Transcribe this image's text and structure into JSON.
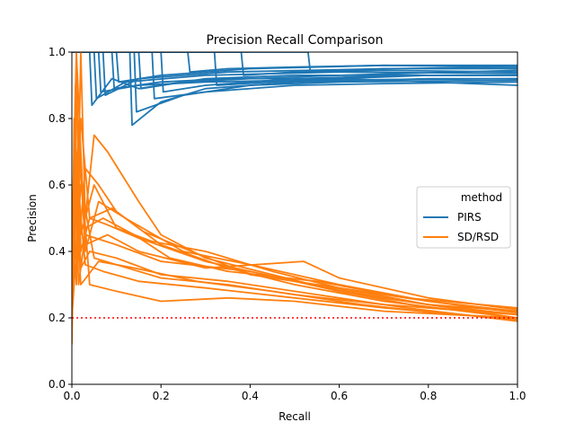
{
  "chart_data": {
    "type": "line",
    "title": "Precision Recall Comparison",
    "xlabel": "Recall",
    "ylabel": "Precision",
    "xlim": [
      0.0,
      1.0
    ],
    "ylim": [
      0.0,
      1.0
    ],
    "xticks": [
      0.0,
      0.2,
      0.4,
      0.6,
      0.8,
      1.0
    ],
    "yticks": [
      0.0,
      0.2,
      0.4,
      0.6,
      0.8,
      1.0
    ],
    "xtick_labels": [
      "0.0",
      "0.2",
      "0.4",
      "0.6",
      "0.8",
      "1.0"
    ],
    "ytick_labels": [
      "0.0",
      "0.2",
      "0.4",
      "0.6",
      "0.8",
      "1.0"
    ],
    "grid": false,
    "legend": {
      "title": "method",
      "position": "center-right",
      "entries": [
        {
          "label": "PIRS",
          "color": "#1f77b4"
        },
        {
          "label": "SD/RSD",
          "color": "#ff7f0e"
        }
      ]
    },
    "baseline": {
      "y": 0.2,
      "color": "#ff0000",
      "style": "dotted"
    },
    "series": [
      {
        "name": "PIRS",
        "color": "#1f77b4",
        "values": [
          [
            [
              0.0,
              1.0
            ],
            [
              0.04,
              1.0
            ],
            [
              0.045,
              0.84
            ],
            [
              0.09,
              0.92
            ],
            [
              0.15,
              0.89
            ],
            [
              0.3,
              0.92
            ],
            [
              0.5,
              0.93
            ],
            [
              0.7,
              0.93
            ],
            [
              1.0,
              0.93
            ]
          ],
          [
            [
              0.0,
              1.0
            ],
            [
              0.05,
              1.0
            ],
            [
              0.055,
              0.86
            ],
            [
              0.12,
              0.91
            ],
            [
              0.3,
              0.93
            ],
            [
              0.6,
              0.94
            ],
            [
              1.0,
              0.935
            ]
          ],
          [
            [
              0.0,
              1.0
            ],
            [
              0.07,
              1.0
            ],
            [
              0.075,
              0.87
            ],
            [
              0.15,
              0.92
            ],
            [
              0.35,
              0.94
            ],
            [
              0.7,
              0.95
            ],
            [
              1.0,
              0.95
            ]
          ],
          [
            [
              0.0,
              1.0
            ],
            [
              0.13,
              1.0
            ],
            [
              0.135,
              0.78
            ],
            [
              0.2,
              0.85
            ],
            [
              0.3,
              0.89
            ],
            [
              0.5,
              0.91
            ],
            [
              0.8,
              0.92
            ],
            [
              1.0,
              0.92
            ]
          ],
          [
            [
              0.0,
              1.0
            ],
            [
              0.1,
              1.0
            ],
            [
              0.105,
              0.91
            ],
            [
              0.2,
              0.93
            ],
            [
              0.4,
              0.95
            ],
            [
              0.7,
              0.96
            ],
            [
              1.0,
              0.955
            ]
          ],
          [
            [
              0.0,
              1.0
            ],
            [
              0.14,
              1.0
            ],
            [
              0.145,
              0.82
            ],
            [
              0.25,
              0.87
            ],
            [
              0.4,
              0.9
            ],
            [
              0.6,
              0.91
            ],
            [
              1.0,
              0.915
            ]
          ],
          [
            [
              0.0,
              1.0
            ],
            [
              0.26,
              1.0
            ],
            [
              0.265,
              0.94
            ],
            [
              0.35,
              0.95
            ],
            [
              0.5,
              0.955
            ],
            [
              0.7,
              0.96
            ],
            [
              1.0,
              0.96
            ]
          ],
          [
            [
              0.0,
              1.0
            ],
            [
              0.53,
              1.0
            ],
            [
              0.535,
              0.94
            ],
            [
              0.7,
              0.95
            ],
            [
              1.0,
              0.955
            ]
          ],
          [
            [
              0.0,
              1.0
            ],
            [
              0.2,
              1.0
            ],
            [
              0.205,
              0.88
            ],
            [
              0.3,
              0.9
            ],
            [
              0.5,
              0.92
            ],
            [
              0.75,
              0.93
            ],
            [
              1.0,
              0.93
            ]
          ],
          [
            [
              0.0,
              1.0
            ],
            [
              0.09,
              1.0
            ],
            [
              0.095,
              0.89
            ],
            [
              0.2,
              0.91
            ],
            [
              0.35,
              0.92
            ],
            [
              0.6,
              0.92
            ],
            [
              0.8,
              0.91
            ],
            [
              1.0,
              0.9
            ]
          ],
          [
            [
              0.0,
              1.0
            ],
            [
              0.32,
              1.0
            ],
            [
              0.325,
              0.9
            ],
            [
              0.45,
              0.91
            ],
            [
              0.6,
              0.92
            ],
            [
              0.8,
              0.93
            ],
            [
              1.0,
              0.93
            ]
          ],
          [
            [
              0.0,
              1.0
            ],
            [
              0.15,
              1.0
            ],
            [
              0.155,
              0.89
            ],
            [
              0.25,
              0.91
            ],
            [
              0.4,
              0.92
            ],
            [
              0.6,
              0.93
            ],
            [
              1.0,
              0.945
            ]
          ],
          [
            [
              0.0,
              1.0
            ],
            [
              0.18,
              1.0
            ],
            [
              0.185,
              0.86
            ],
            [
              0.3,
              0.88
            ],
            [
              0.5,
              0.9
            ],
            [
              0.7,
              0.905
            ],
            [
              1.0,
              0.91
            ]
          ],
          [
            [
              0.0,
              1.0
            ],
            [
              0.38,
              1.0
            ],
            [
              0.385,
              0.93
            ],
            [
              0.5,
              0.94
            ],
            [
              0.7,
              0.945
            ],
            [
              1.0,
              0.94
            ]
          ],
          [
            [
              0.0,
              1.0
            ],
            [
              0.06,
              1.0
            ],
            [
              0.065,
              0.88
            ],
            [
              0.15,
              0.9
            ],
            [
              0.3,
              0.91
            ],
            [
              0.5,
              0.915
            ],
            [
              1.0,
              0.92
            ]
          ]
        ]
      },
      {
        "name": "SD/RSD",
        "color": "#ff7f0e",
        "values": [
          [
            [
              0.0,
              0.12
            ],
            [
              0.005,
              0.6
            ],
            [
              0.01,
              0.3
            ],
            [
              0.02,
              1.0
            ],
            [
              0.03,
              0.5
            ],
            [
              0.05,
              0.75
            ],
            [
              0.08,
              0.7
            ],
            [
              0.15,
              0.55
            ],
            [
              0.2,
              0.45
            ],
            [
              0.3,
              0.38
            ],
            [
              0.45,
              0.33
            ],
            [
              0.6,
              0.28
            ],
            [
              0.8,
              0.23
            ],
            [
              1.0,
              0.21
            ]
          ],
          [
            [
              0.0,
              0.2
            ],
            [
              0.008,
              0.9
            ],
            [
              0.012,
              0.35
            ],
            [
              0.03,
              0.65
            ],
            [
              0.06,
              0.6
            ],
            [
              0.1,
              0.52
            ],
            [
              0.2,
              0.42
            ],
            [
              0.35,
              0.35
            ],
            [
              0.5,
              0.3
            ],
            [
              0.7,
              0.25
            ],
            [
              1.0,
              0.2
            ]
          ],
          [
            [
              0.0,
              0.3
            ],
            [
              0.01,
              0.95
            ],
            [
              0.02,
              0.4
            ],
            [
              0.04,
              0.5
            ],
            [
              0.08,
              0.48
            ],
            [
              0.15,
              0.44
            ],
            [
              0.3,
              0.37
            ],
            [
              0.5,
              0.31
            ],
            [
              0.7,
              0.26
            ],
            [
              0.9,
              0.22
            ],
            [
              1.0,
              0.2
            ]
          ],
          [
            [
              0.0,
              0.15
            ],
            [
              0.005,
              0.8
            ],
            [
              0.015,
              0.3
            ],
            [
              0.03,
              0.45
            ],
            [
              0.1,
              0.42
            ],
            [
              0.2,
              0.37
            ],
            [
              0.4,
              0.34
            ],
            [
              0.6,
              0.28
            ],
            [
              0.8,
              0.24
            ],
            [
              1.0,
              0.22
            ]
          ],
          [
            [
              0.0,
              0.25
            ],
            [
              0.01,
              0.7
            ],
            [
              0.02,
              0.35
            ],
            [
              0.04,
              0.4
            ],
            [
              0.1,
              0.38
            ],
            [
              0.2,
              0.33
            ],
            [
              0.35,
              0.31
            ],
            [
              0.55,
              0.27
            ],
            [
              0.75,
              0.23
            ],
            [
              1.0,
              0.19
            ]
          ],
          [
            [
              0.0,
              0.4
            ],
            [
              0.01,
              1.0
            ],
            [
              0.03,
              0.4
            ],
            [
              0.06,
              0.55
            ],
            [
              0.12,
              0.5
            ],
            [
              0.25,
              0.4
            ],
            [
              0.4,
              0.36
            ],
            [
              0.6,
              0.3
            ],
            [
              0.8,
              0.25
            ],
            [
              1.0,
              0.22
            ]
          ],
          [
            [
              0.0,
              0.2
            ],
            [
              0.02,
              0.6
            ],
            [
              0.05,
              0.38
            ],
            [
              0.1,
              0.36
            ],
            [
              0.2,
              0.32
            ],
            [
              0.35,
              0.3
            ],
            [
              0.5,
              0.27
            ],
            [
              0.7,
              0.24
            ],
            [
              1.0,
              0.21
            ]
          ],
          [
            [
              0.0,
              0.3
            ],
            [
              0.01,
              0.85
            ],
            [
              0.03,
              0.42
            ],
            [
              0.08,
              0.45
            ],
            [
              0.15,
              0.4
            ],
            [
              0.3,
              0.35
            ],
            [
              0.52,
              0.37
            ],
            [
              0.6,
              0.32
            ],
            [
              0.8,
              0.26
            ],
            [
              1.0,
              0.225
            ]
          ],
          [
            [
              0.0,
              0.25
            ],
            [
              0.015,
              0.75
            ],
            [
              0.04,
              0.3
            ],
            [
              0.1,
              0.28
            ],
            [
              0.2,
              0.25
            ],
            [
              0.35,
              0.26
            ],
            [
              0.5,
              0.25
            ],
            [
              0.7,
              0.22
            ],
            [
              1.0,
              0.2
            ]
          ],
          [
            [
              0.0,
              0.35
            ],
            [
              0.01,
              0.9
            ],
            [
              0.02,
              0.45
            ],
            [
              0.05,
              0.6
            ],
            [
              0.1,
              0.47
            ],
            [
              0.18,
              0.43
            ],
            [
              0.3,
              0.4
            ],
            [
              0.45,
              0.34
            ],
            [
              0.6,
              0.29
            ],
            [
              0.8,
              0.24
            ],
            [
              1.0,
              0.21
            ]
          ],
          [
            [
              0.0,
              0.2
            ],
            [
              0.01,
              0.65
            ],
            [
              0.03,
              0.36
            ],
            [
              0.07,
              0.34
            ],
            [
              0.15,
              0.31
            ],
            [
              0.3,
              0.29
            ],
            [
              0.5,
              0.26
            ],
            [
              0.7,
              0.23
            ],
            [
              1.0,
              0.195
            ]
          ],
          [
            [
              0.0,
              0.3
            ],
            [
              0.02,
              0.8
            ],
            [
              0.04,
              0.5
            ],
            [
              0.09,
              0.53
            ],
            [
              0.16,
              0.46
            ],
            [
              0.25,
              0.41
            ],
            [
              0.4,
              0.33
            ],
            [
              0.6,
              0.29
            ],
            [
              0.8,
              0.25
            ],
            [
              1.0,
              0.215
            ]
          ],
          [
            [
              0.0,
              0.2
            ],
            [
              0.01,
              0.55
            ],
            [
              0.02,
              0.3
            ],
            [
              0.06,
              0.37
            ],
            [
              0.14,
              0.35
            ],
            [
              0.28,
              0.31
            ],
            [
              0.45,
              0.28
            ],
            [
              0.65,
              0.24
            ],
            [
              0.85,
              0.21
            ],
            [
              1.0,
              0.2
            ]
          ],
          [
            [
              0.0,
              0.4
            ],
            [
              0.015,
              0.7
            ],
            [
              0.03,
              0.47
            ],
            [
              0.07,
              0.5
            ],
            [
              0.14,
              0.45
            ],
            [
              0.22,
              0.38
            ],
            [
              0.35,
              0.34
            ],
            [
              0.55,
              0.31
            ],
            [
              0.75,
              0.26
            ],
            [
              1.0,
              0.23
            ]
          ]
        ]
      }
    ]
  }
}
